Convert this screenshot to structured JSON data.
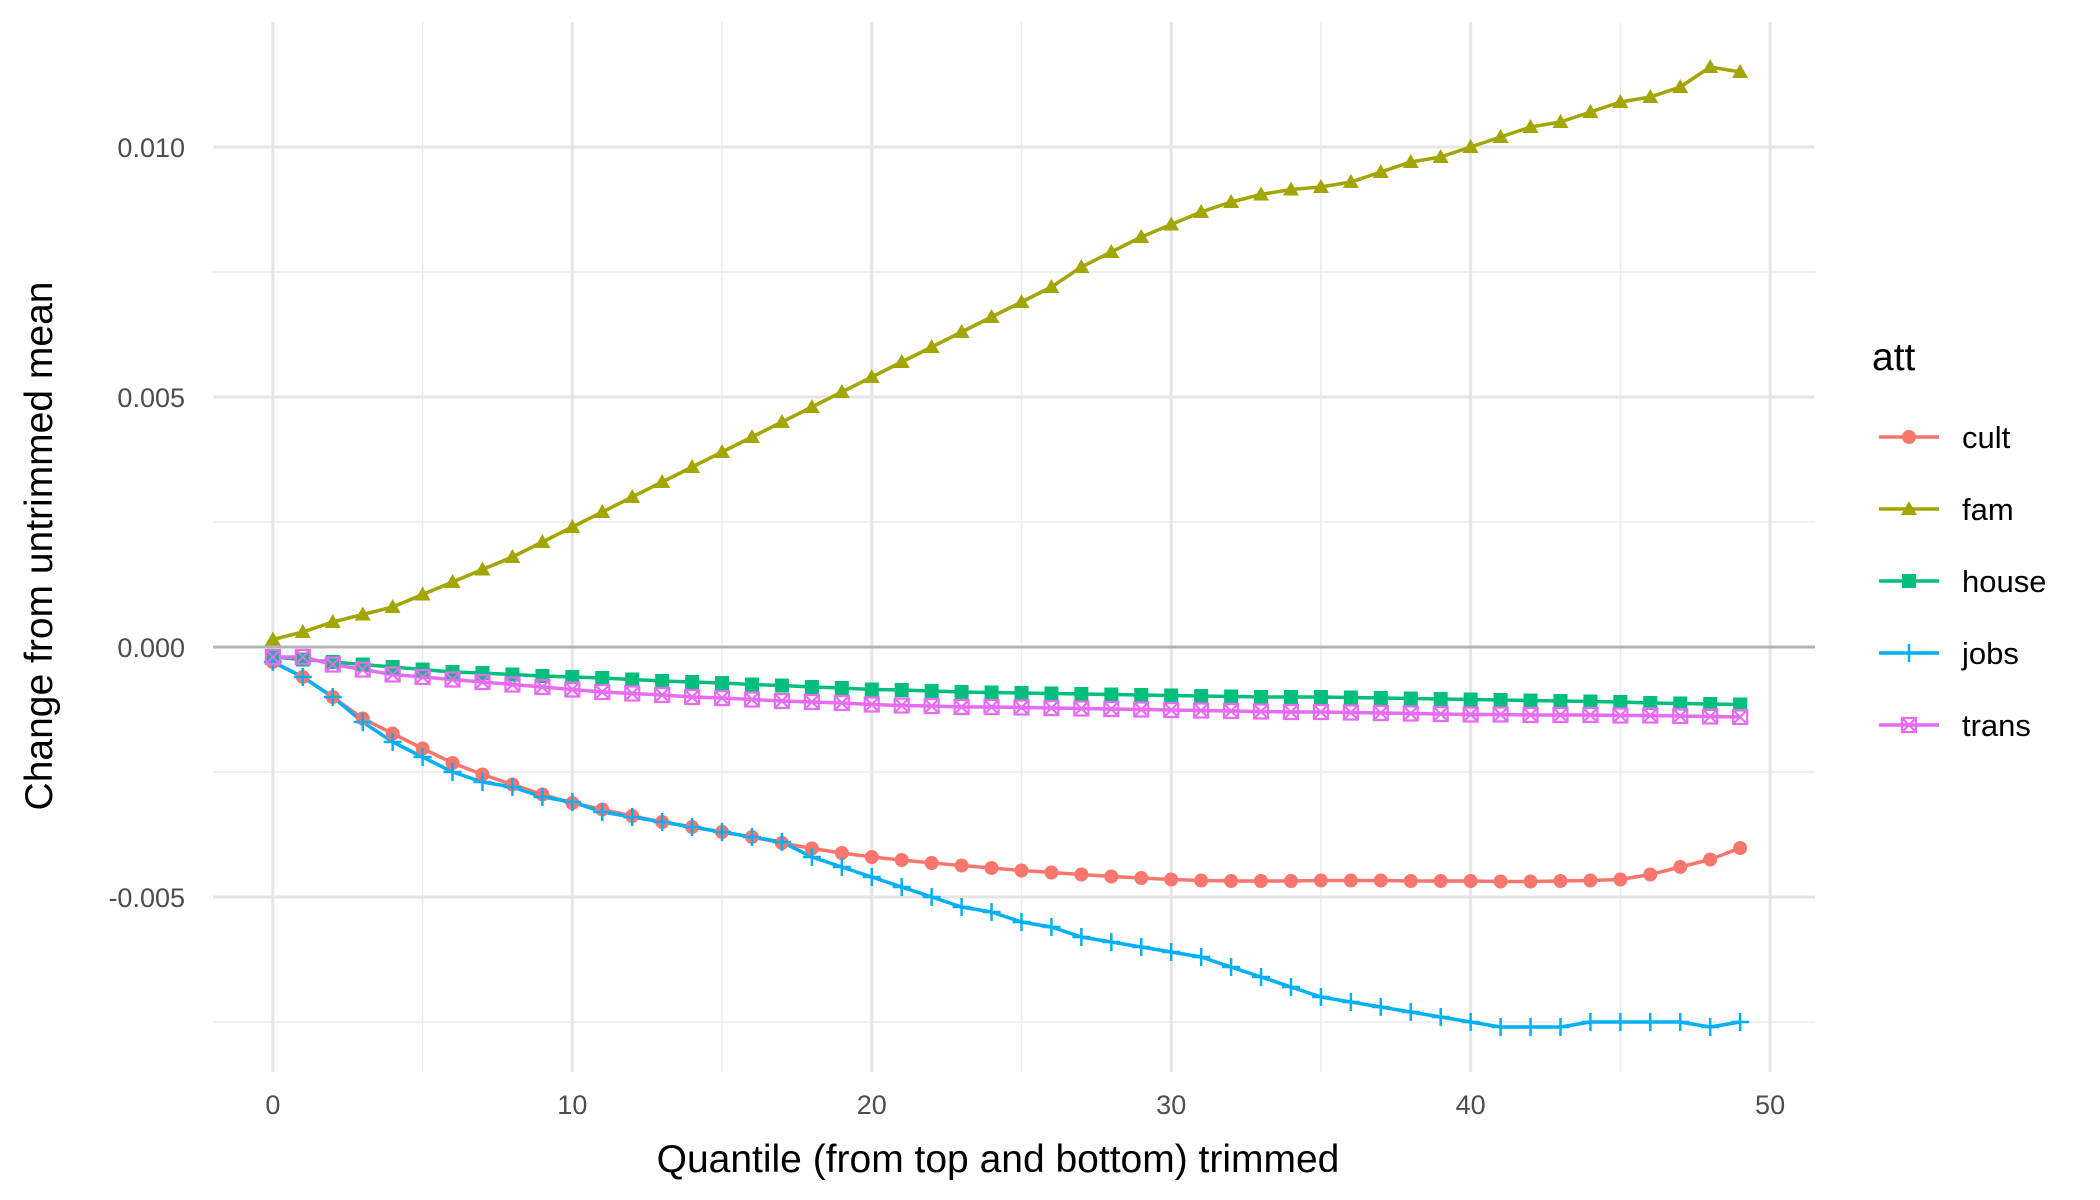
{
  "chart_data": {
    "type": "line",
    "title": "",
    "xlabel": "Quantile (from top and bottom) trimmed",
    "ylabel": "Change from untrimmed mean",
    "xlim": [
      -2,
      51.5
    ],
    "ylim": [
      -0.0085,
      0.0125
    ],
    "xticks": [
      0,
      10,
      20,
      30,
      40,
      50
    ],
    "xtick_labels": [
      "0",
      "10",
      "20",
      "30",
      "40",
      "50"
    ],
    "yticks": [
      -0.005,
      0,
      0.005,
      0.01
    ],
    "ytick_labels": [
      "-0.005",
      "0.000",
      "0.005",
      "0.010"
    ],
    "hline": 0,
    "grid": true,
    "legend": {
      "title": "att",
      "position": "right"
    },
    "x": [
      0,
      1,
      2,
      3,
      4,
      5,
      6,
      7,
      8,
      9,
      10,
      11,
      12,
      13,
      14,
      15,
      16,
      17,
      18,
      19,
      20,
      21,
      22,
      23,
      24,
      25,
      26,
      27,
      28,
      29,
      30,
      31,
      32,
      33,
      34,
      35,
      36,
      37,
      38,
      39,
      40,
      41,
      42,
      43,
      44,
      45,
      46,
      47,
      48,
      49
    ],
    "series": [
      {
        "name": "cult",
        "color": "#F8766D",
        "marker": "circle",
        "values": [
          -0.0003,
          -0.0006,
          -0.001,
          -0.00143,
          -0.00173,
          -0.00203,
          -0.00232,
          -0.00255,
          -0.00275,
          -0.00295,
          -0.00312,
          -0.00325,
          -0.00338,
          -0.0035,
          -0.0036,
          -0.0037,
          -0.0038,
          -0.00392,
          -0.00403,
          -0.00412,
          -0.0042,
          -0.00426,
          -0.00432,
          -0.00437,
          -0.00442,
          -0.00447,
          -0.00451,
          -0.00455,
          -0.00459,
          -0.00462,
          -0.00465,
          -0.00467,
          -0.00468,
          -0.00468,
          -0.00468,
          -0.00467,
          -0.00467,
          -0.00467,
          -0.00468,
          -0.00468,
          -0.00468,
          -0.00469,
          -0.00469,
          -0.00468,
          -0.00467,
          -0.00465,
          -0.00455,
          -0.0044,
          -0.00425,
          -0.00402
        ]
      },
      {
        "name": "fam",
        "color": "#A3A500",
        "marker": "triangle",
        "values": [
          0.00015,
          0.0003,
          0.0005,
          0.00065,
          0.0008,
          0.00105,
          0.0013,
          0.00155,
          0.0018,
          0.0021,
          0.0024,
          0.0027,
          0.003,
          0.0033,
          0.0036,
          0.0039,
          0.0042,
          0.0045,
          0.0048,
          0.0051,
          0.0054,
          0.0057,
          0.006,
          0.0063,
          0.0066,
          0.0069,
          0.0072,
          0.0076,
          0.0079,
          0.0082,
          0.00845,
          0.0087,
          0.0089,
          0.00905,
          0.00915,
          0.0092,
          0.0093,
          0.0095,
          0.0097,
          0.0098,
          0.01,
          0.0102,
          0.0104,
          0.0105,
          0.0107,
          0.0109,
          0.011,
          0.0112,
          0.0116,
          0.0115
        ]
      },
      {
        "name": "house",
        "color": "#00BF7D",
        "marker": "square",
        "values": [
          -0.0002,
          -0.00025,
          -0.0003,
          -0.00035,
          -0.0004,
          -0.00045,
          -0.0005,
          -0.00052,
          -0.00055,
          -0.00058,
          -0.0006,
          -0.00062,
          -0.00065,
          -0.00068,
          -0.0007,
          -0.00072,
          -0.00075,
          -0.00077,
          -0.0008,
          -0.00082,
          -0.00085,
          -0.00086,
          -0.00088,
          -0.0009,
          -0.00091,
          -0.00092,
          -0.00093,
          -0.00094,
          -0.00095,
          -0.00096,
          -0.00097,
          -0.00098,
          -0.00099,
          -0.001,
          -0.001,
          -0.001,
          -0.00101,
          -0.00102,
          -0.00103,
          -0.00104,
          -0.00105,
          -0.00106,
          -0.00107,
          -0.00108,
          -0.00109,
          -0.0011,
          -0.00112,
          -0.00113,
          -0.00114,
          -0.00115
        ]
      },
      {
        "name": "jobs",
        "color": "#00B0F6",
        "marker": "plus",
        "values": [
          -0.0003,
          -0.0006,
          -0.001,
          -0.0015,
          -0.0019,
          -0.0022,
          -0.0025,
          -0.0027,
          -0.0028,
          -0.003,
          -0.0031,
          -0.0033,
          -0.0034,
          -0.0035,
          -0.0036,
          -0.0037,
          -0.0038,
          -0.0039,
          -0.0042,
          -0.0044,
          -0.0046,
          -0.0048,
          -0.005,
          -0.0052,
          -0.0053,
          -0.0055,
          -0.0056,
          -0.0058,
          -0.0059,
          -0.006,
          -0.0061,
          -0.0062,
          -0.0064,
          -0.0066,
          -0.0068,
          -0.007,
          -0.0071,
          -0.0072,
          -0.0073,
          -0.0074,
          -0.0075,
          -0.0076,
          -0.0076,
          -0.0076,
          -0.0075,
          -0.0075,
          -0.0075,
          -0.0075,
          -0.0076,
          -0.0075
        ]
      },
      {
        "name": "trans",
        "color": "#E76BF3",
        "marker": "boxed-x",
        "values": [
          -0.0002,
          -0.0002,
          -0.00035,
          -0.00045,
          -0.00055,
          -0.0006,
          -0.00065,
          -0.0007,
          -0.00075,
          -0.0008,
          -0.00085,
          -0.0009,
          -0.00093,
          -0.00096,
          -0.001,
          -0.00102,
          -0.00105,
          -0.00108,
          -0.0011,
          -0.00112,
          -0.00115,
          -0.00117,
          -0.00118,
          -0.0012,
          -0.0012,
          -0.00121,
          -0.00122,
          -0.00123,
          -0.00124,
          -0.00125,
          -0.00126,
          -0.00127,
          -0.00128,
          -0.00129,
          -0.0013,
          -0.0013,
          -0.00131,
          -0.00132,
          -0.00133,
          -0.00134,
          -0.00135,
          -0.00135,
          -0.00136,
          -0.00136,
          -0.00136,
          -0.00137,
          -0.00137,
          -0.00138,
          -0.00139,
          -0.0014
        ]
      }
    ]
  }
}
